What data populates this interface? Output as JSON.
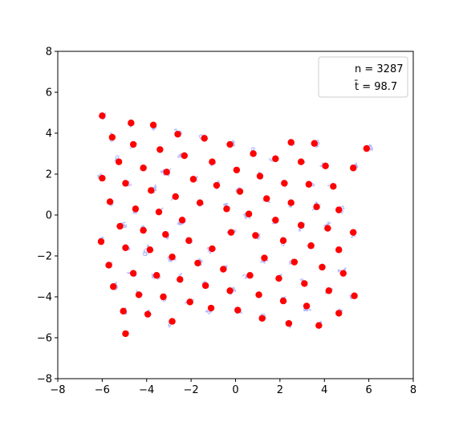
{
  "chart_data": {
    "type": "scatter",
    "title": "",
    "xlabel": "",
    "ylabel": "",
    "xlim": [
      -8,
      8
    ],
    "ylim": [
      -8,
      8
    ],
    "xticks": [
      "−8",
      "−6",
      "−4",
      "−2",
      "0",
      "2",
      "4",
      "6",
      "8"
    ],
    "yticks": [
      "−8",
      "−6",
      "−4",
      "−2",
      "0",
      "2",
      "4",
      "6",
      "8"
    ],
    "grid": false,
    "legend_position": "top-right",
    "legend": {
      "n_label": "n = 3287",
      "t_label": "t̄ =  98.7"
    },
    "colors": {
      "points": "#ff0000",
      "trajectories": "#aab0ff",
      "axes": "#000000"
    },
    "points": [
      [
        -6.0,
        4.85
      ],
      [
        -5.55,
        3.8
      ],
      [
        -4.7,
        4.5
      ],
      [
        -4.6,
        3.45
      ],
      [
        -3.7,
        4.4
      ],
      [
        -3.4,
        3.2
      ],
      [
        -2.6,
        3.95
      ],
      [
        -1.4,
        3.75
      ],
      [
        -0.25,
        3.45
      ],
      [
        0.8,
        3.0
      ],
      [
        2.5,
        3.55
      ],
      [
        3.55,
        3.5
      ],
      [
        5.9,
        3.25
      ],
      [
        -2.3,
        2.9
      ],
      [
        -5.25,
        2.6
      ],
      [
        -4.15,
        2.3
      ],
      [
        -3.1,
        2.1
      ],
      [
        -1.05,
        2.6
      ],
      [
        0.05,
        2.2
      ],
      [
        1.8,
        2.75
      ],
      [
        2.95,
        2.6
      ],
      [
        4.05,
        2.4
      ],
      [
        5.3,
        2.3
      ],
      [
        -6.0,
        1.8
      ],
      [
        -4.95,
        1.55
      ],
      [
        -3.8,
        1.2
      ],
      [
        -1.9,
        1.75
      ],
      [
        -0.85,
        1.45
      ],
      [
        0.2,
        1.15
      ],
      [
        1.1,
        1.9
      ],
      [
        2.2,
        1.55
      ],
      [
        3.3,
        1.5
      ],
      [
        4.4,
        1.4
      ],
      [
        -5.65,
        0.65
      ],
      [
        -4.5,
        0.3
      ],
      [
        -2.7,
        0.9
      ],
      [
        -1.6,
        0.6
      ],
      [
        -0.4,
        0.3
      ],
      [
        0.6,
        0.05
      ],
      [
        1.4,
        0.8
      ],
      [
        2.5,
        0.6
      ],
      [
        3.65,
        0.4
      ],
      [
        4.65,
        0.25
      ],
      [
        -3.45,
        0.15
      ],
      [
        -2.4,
        -0.25
      ],
      [
        -5.2,
        -0.55
      ],
      [
        -4.15,
        -0.75
      ],
      [
        -3.15,
        -0.95
      ],
      [
        1.8,
        -0.25
      ],
      [
        -0.2,
        -0.85
      ],
      [
        0.9,
        -1.0
      ],
      [
        2.95,
        -0.5
      ],
      [
        4.15,
        -0.65
      ],
      [
        5.3,
        -0.85
      ],
      [
        -6.05,
        -1.3
      ],
      [
        -4.95,
        -1.6
      ],
      [
        -3.85,
        -1.7
      ],
      [
        -2.1,
        -1.25
      ],
      [
        -1.05,
        -1.65
      ],
      [
        2.15,
        -1.25
      ],
      [
        3.4,
        -1.5
      ],
      [
        4.65,
        -1.7
      ],
      [
        -5.7,
        -2.45
      ],
      [
        -4.6,
        -2.85
      ],
      [
        -2.85,
        -2.05
      ],
      [
        -1.7,
        -2.35
      ],
      [
        -0.55,
        -2.65
      ],
      [
        1.3,
        -2.1
      ],
      [
        2.65,
        -2.3
      ],
      [
        3.9,
        -2.55
      ],
      [
        0.65,
        -2.95
      ],
      [
        4.85,
        -2.85
      ],
      [
        -5.5,
        -3.5
      ],
      [
        -4.35,
        -3.9
      ],
      [
        -3.55,
        -2.95
      ],
      [
        -2.5,
        -3.15
      ],
      [
        -1.35,
        -3.45
      ],
      [
        -0.25,
        -3.7
      ],
      [
        1.95,
        -3.1
      ],
      [
        3.1,
        -3.35
      ],
      [
        4.2,
        -3.7
      ],
      [
        5.35,
        -3.95
      ],
      [
        1.05,
        -3.9
      ],
      [
        -3.25,
        -4.0
      ],
      [
        -5.05,
        -4.7
      ],
      [
        -3.95,
        -4.85
      ],
      [
        -2.05,
        -4.25
      ],
      [
        -1.1,
        -4.55
      ],
      [
        0.1,
        -4.65
      ],
      [
        2.15,
        -4.2
      ],
      [
        3.2,
        -4.45
      ],
      [
        4.65,
        -4.8
      ],
      [
        -4.95,
        -5.8
      ],
      [
        -2.85,
        -5.2
      ],
      [
        1.2,
        -5.05
      ],
      [
        2.4,
        -5.3
      ],
      [
        3.75,
        -5.4
      ]
    ]
  }
}
